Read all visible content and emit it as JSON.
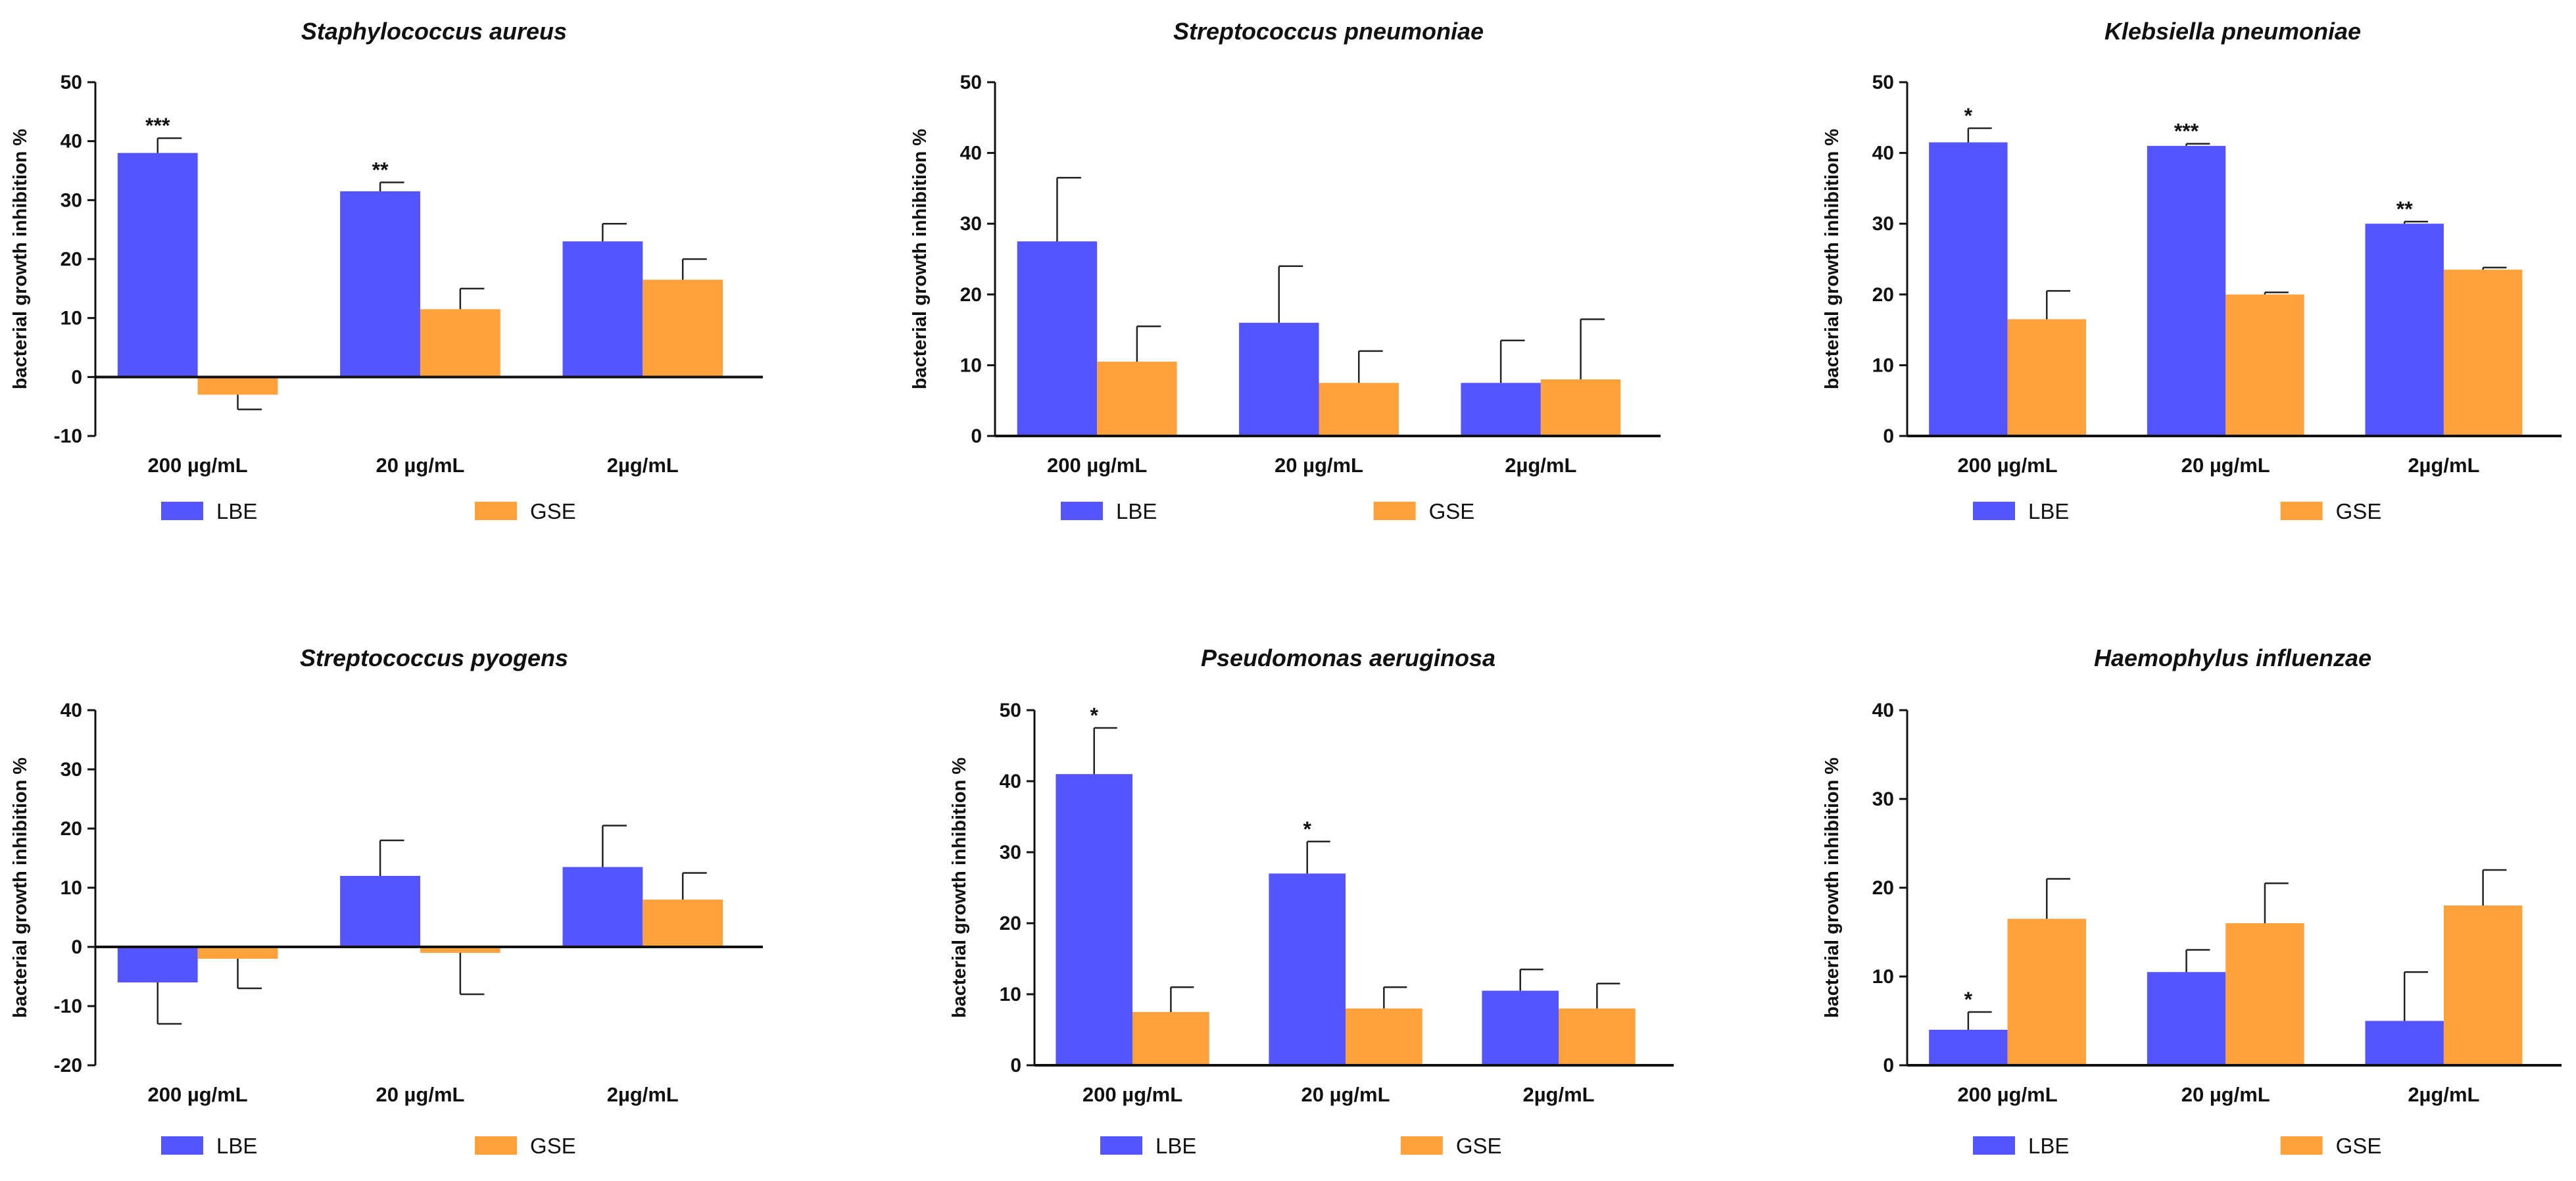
{
  "chart_data": [
    {
      "type": "bar",
      "title": "Staphylococcus aureus",
      "ylabel": "bacterial growth inhibition %",
      "categories": [
        "200 µg/mL",
        "20 µg/mL",
        "2µg/mL"
      ],
      "ylim": [
        -10,
        50
      ],
      "yticks": [
        -10,
        0,
        10,
        20,
        30,
        40,
        50
      ],
      "series": [
        {
          "name": "LBE",
          "values": [
            38,
            31.5,
            23
          ],
          "errors": [
            2.5,
            1.5,
            3
          ],
          "color": "#5555ff"
        },
        {
          "name": "GSE",
          "values": [
            -3,
            11.5,
            16.5
          ],
          "errors": [
            2.5,
            3.5,
            3.5
          ],
          "color": "#ffa23c"
        }
      ],
      "significance": [
        {
          "series": 0,
          "index": 0,
          "label": "***"
        },
        {
          "series": 0,
          "index": 1,
          "label": "**"
        }
      ]
    },
    {
      "type": "bar",
      "title": "Streptococcus pneumoniae",
      "ylabel": "bacterial growth inhibition %",
      "categories": [
        "200 µg/mL",
        "20 µg/mL",
        "2µg/mL"
      ],
      "ylim": [
        0,
        50
      ],
      "yticks": [
        0,
        10,
        20,
        30,
        40,
        50
      ],
      "series": [
        {
          "name": "LBE",
          "values": [
            27.5,
            16,
            7.5
          ],
          "errors": [
            9,
            8,
            6
          ],
          "color": "#5555ff"
        },
        {
          "name": "GSE",
          "values": [
            10.5,
            7.5,
            8
          ],
          "errors": [
            5,
            4.5,
            8.5
          ],
          "color": "#ffa23c"
        }
      ],
      "significance": []
    },
    {
      "type": "bar",
      "title": "Klebsiella pneumoniae",
      "ylabel": "bacterial growth inhibition %",
      "categories": [
        "200 µg/mL",
        "20 µg/mL",
        "2µg/mL"
      ],
      "ylim": [
        0,
        50
      ],
      "yticks": [
        0,
        10,
        20,
        30,
        40,
        50
      ],
      "series": [
        {
          "name": "LBE",
          "values": [
            41.5,
            41,
            30
          ],
          "errors": [
            2,
            0.3,
            0.3
          ],
          "color": "#5555ff"
        },
        {
          "name": "GSE",
          "values": [
            16.5,
            20,
            23.5
          ],
          "errors": [
            4,
            0.3,
            0.3
          ],
          "color": "#ffa23c"
        }
      ],
      "significance": [
        {
          "series": 0,
          "index": 0,
          "label": "*"
        },
        {
          "series": 0,
          "index": 1,
          "label": "***"
        },
        {
          "series": 0,
          "index": 2,
          "label": "**"
        }
      ]
    },
    {
      "type": "bar",
      "title": "Streptococcus pyogens",
      "ylabel": "bacterial growth inhibition %",
      "categories": [
        "200 µg/mL",
        "20 µg/mL",
        "2µg/mL"
      ],
      "ylim": [
        -20,
        40
      ],
      "yticks": [
        -20,
        -10,
        0,
        10,
        20,
        30,
        40
      ],
      "series": [
        {
          "name": "LBE",
          "values": [
            -6,
            12,
            13.5
          ],
          "errors": [
            7,
            6,
            7
          ],
          "color": "#5555ff"
        },
        {
          "name": "GSE",
          "values": [
            -2,
            -1,
            8
          ],
          "errors": [
            5,
            7,
            4.5
          ],
          "color": "#ffa23c"
        }
      ],
      "significance": []
    },
    {
      "type": "bar",
      "title": "Pseudomonas aeruginosa",
      "ylabel": "bacterial growth inhibition %",
      "categories": [
        "200 µg/mL",
        "20 µg/mL",
        "2µg/mL"
      ],
      "ylim": [
        0,
        50
      ],
      "yticks": [
        0,
        10,
        20,
        30,
        40,
        50
      ],
      "series": [
        {
          "name": "LBE",
          "values": [
            41,
            27,
            10.5
          ],
          "errors": [
            6.5,
            4.5,
            3
          ],
          "color": "#5555ff"
        },
        {
          "name": "GSE",
          "values": [
            7.5,
            8,
            8
          ],
          "errors": [
            3.5,
            3,
            3.5
          ],
          "color": "#ffa23c"
        }
      ],
      "significance": [
        {
          "series": 0,
          "index": 0,
          "label": "*"
        },
        {
          "series": 0,
          "index": 1,
          "label": "*"
        }
      ]
    },
    {
      "type": "bar",
      "title": "Haemophylus influenzae",
      "ylabel": "bacterial growth inhibition %",
      "categories": [
        "200 µg/mL",
        "20 µg/mL",
        "2µg/mL"
      ],
      "ylim": [
        0,
        40
      ],
      "yticks": [
        0,
        10,
        20,
        30,
        40
      ],
      "series": [
        {
          "name": "LBE",
          "values": [
            4,
            10.5,
            5
          ],
          "errors": [
            2,
            2.5,
            5.5
          ],
          "color": "#5555ff"
        },
        {
          "name": "GSE",
          "values": [
            16.5,
            16,
            18
          ],
          "errors": [
            4.5,
            4.5,
            4
          ],
          "color": "#ffa23c"
        }
      ],
      "significance": [
        {
          "series": 0,
          "index": 0,
          "label": "*"
        }
      ]
    }
  ]
}
